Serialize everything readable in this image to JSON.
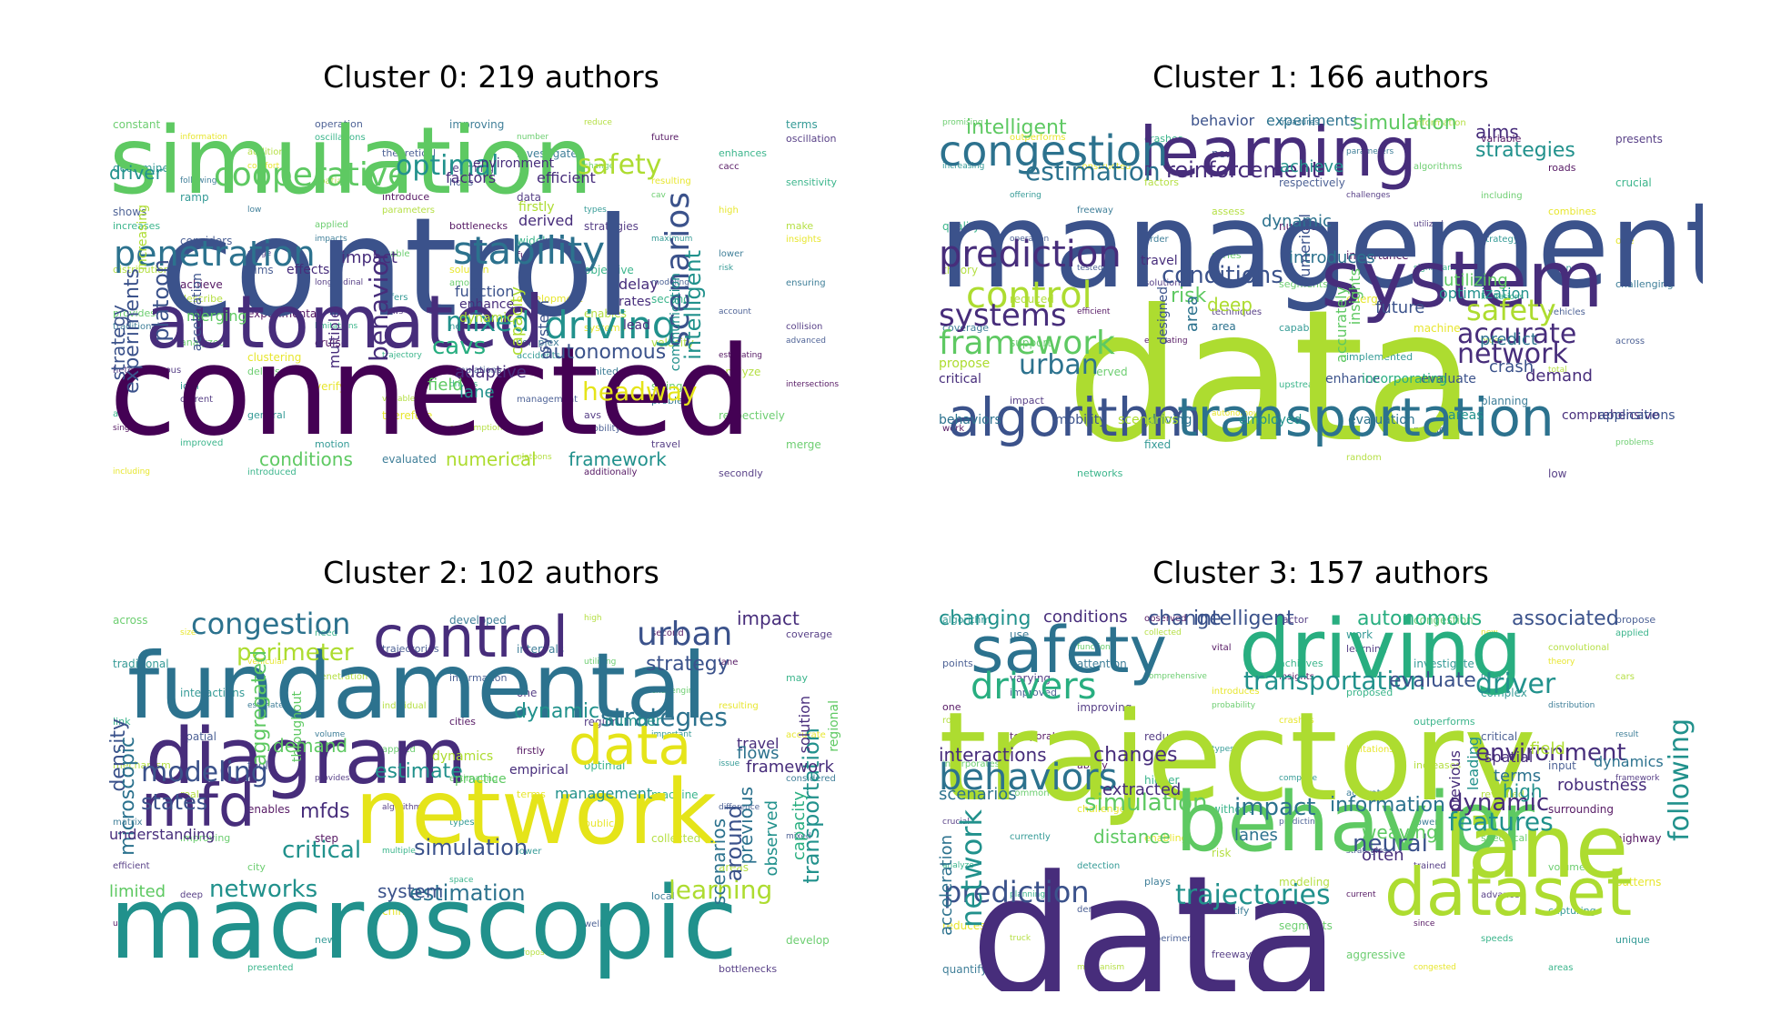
{
  "palette": {
    "dark_purple": "#440154",
    "indigo": "#472d7b",
    "navy": "#3b528b",
    "steel_blue": "#2c728e",
    "teal": "#21918c",
    "sea_green": "#28ae80",
    "green": "#5ec962",
    "lime": "#addc30",
    "yellow": "#e5e419"
  },
  "clusters": [
    {
      "title": "Cluster 0: 219 authors",
      "words": [
        "simulation",
        "control",
        "connected",
        "automated",
        "penetration",
        "stability",
        "driving",
        "cooperative",
        "safety",
        "optimal",
        "scenarios",
        "mixed",
        "cavs",
        "behavior",
        "experiments",
        "platoon",
        "autonomous",
        "strategy",
        "intelligent",
        "adaptive",
        "headway",
        "conditions",
        "framework",
        "numerical",
        "lane",
        "capacity",
        "field",
        "driver",
        "environment",
        "factors",
        "efficient",
        "derived",
        "firstly",
        "delay",
        "rates",
        "lead",
        "merging",
        "multiple",
        "impact",
        "effects",
        "function",
        "enhance",
        "dynamic",
        "system",
        "communication",
        "increasing",
        "acceleration",
        "constant",
        "reduce",
        "oscillations",
        "oscillation",
        "investigate",
        "comfort",
        "cacc",
        "hdvs",
        "ramp",
        "cav",
        "parameters",
        "increases",
        "strategies",
        "impacts",
        "insights",
        "fuel",
        "aims",
        "risk",
        "among",
        "describe",
        "second",
        "flows",
        "traditional",
        "systems",
        "cruise",
        "advanced",
        "accidents",
        "delays",
        "analyze",
        "drivers",
        "current",
        "problem",
        "therefore",
        "single",
        "mobility",
        "motion",
        "merge",
        "platoons",
        "introduced",
        "secondly",
        "improving",
        "information",
        "future",
        "theoretical",
        "determine",
        "change",
        "spatial",
        "sensitivity",
        "data",
        "low",
        "high",
        "bottlenecks",
        "considers",
        "maximum",
        "stable",
        "distribution",
        "objective",
        "longitudinal",
        "ensuring",
        "development",
        "experimental",
        "account",
        "network",
        "analyzed",
        "velocity",
        "trajectory",
        "heterogeneous",
        "limited",
        "verify",
        "intersections",
        "management",
        "general",
        "respectively",
        "consumption",
        "improved",
        "travel",
        "evaluated",
        "including",
        "additionally",
        "operation",
        "terms",
        "number",
        "addition",
        "enhances",
        "learning",
        "following",
        "resulting",
        "introduce",
        "shows",
        "types",
        "applied",
        "make",
        "widely",
        "range",
        "lower",
        "solution",
        "achieve",
        "modeling",
        "offers",
        "provides",
        "enables",
        "limitations",
        "collision",
        "complex",
        "clustering",
        "estimating",
        "simulations",
        "idm",
        "string",
        "variable",
        "av",
        "avs"
      ]
    },
    {
      "title": "Cluster 1: 166 authors",
      "words": [
        "data",
        "management",
        "learning",
        "system",
        "congestion",
        "algorithm",
        "transportation",
        "prediction",
        "control",
        "systems",
        "framework",
        "network",
        "urban",
        "safety",
        "accurate",
        "estimation",
        "reinforcement",
        "conditions",
        "intelligent",
        "behavior",
        "experiments",
        "simulation",
        "aims",
        "strategies",
        "achieve",
        "introduces",
        "dynamic",
        "risk",
        "deep",
        "travel",
        "future",
        "crash",
        "demand",
        "predict",
        "numerical",
        "area",
        "designed",
        "accurately",
        "insights",
        "optimization",
        "utilizing",
        "area",
        "evaluate",
        "enhance",
        "incorporating",
        "driving",
        "employed",
        "evaluation",
        "areas",
        "comprehensive",
        "applications",
        "behaviors",
        "mobility",
        "scenarios",
        "critical",
        "propose",
        "promising",
        "information",
        "crashes",
        "presents",
        "parameters",
        "constructed",
        "roads",
        "respectively",
        "offering",
        "including",
        "assess",
        "quality",
        "utilized",
        "order",
        "one",
        "importance",
        "tested",
        "often",
        "segments",
        "reduced",
        "limitations",
        "techniques",
        "coverage",
        "machine",
        "evaluating",
        "across",
        "implemented",
        "observed",
        "total",
        "upstream",
        "impact",
        "planning",
        "autonomous",
        "work",
        "problem",
        "fixed",
        "problems",
        "random",
        "networks",
        "low",
        "measures",
        "outperforms",
        "variable",
        "new",
        "increasing",
        "algorithms",
        "factors",
        "crucial",
        "challenges",
        "freeway",
        "combines",
        "number",
        "operation",
        "strategy",
        "series",
        "theory",
        "significant",
        "solutions",
        "challenging",
        "energy",
        "efficient",
        "vehicles",
        "capable",
        "support",
        "order"
      ]
    },
    {
      "title": "Cluster 2: 102 authors",
      "words": [
        "macroscopic",
        "fundamental",
        "network",
        "diagram",
        "data",
        "control",
        "mfd",
        "congestion",
        "urban",
        "perimeter",
        "strategies",
        "modeling",
        "estimate",
        "dynamic",
        "dynamics",
        "density",
        "microscopic",
        "states",
        "demand",
        "mfds",
        "critical",
        "simulation",
        "networks",
        "estimation",
        "system",
        "limited",
        "understanding",
        "learning",
        "transportation",
        "observed",
        "capacity",
        "regional",
        "solution",
        "previous",
        "scenarios",
        "around",
        "strategy",
        "impact",
        "framework",
        "travel",
        "flows",
        "management",
        "aggregated",
        "throughout",
        "empirical",
        "practice",
        "number",
        "across",
        "high",
        "need",
        "coverage",
        "intervals",
        "vehicular",
        "lane",
        "information",
        "interactions",
        "challenging",
        "individual",
        "link",
        "region",
        "volume",
        "accurate",
        "firstly",
        "tool",
        "issue",
        "estimating",
        "real",
        "machine",
        "algorithm",
        "matrix",
        "public",
        "step",
        "mixed",
        "lower",
        "city",
        "areas",
        "space",
        "deep",
        "local",
        "china",
        "use",
        "well",
        "new",
        "develop",
        "propose",
        "presented",
        "bottlenecks",
        "developed",
        "size",
        "second",
        "trajectories",
        "traditional",
        "utilizing",
        "penetration",
        "may",
        "one",
        "estimated",
        "resulting",
        "cities",
        "spatial",
        "important",
        "applied",
        "mechanism",
        "optimal",
        "provides",
        "considered",
        "terms",
        "enables",
        "difference",
        "types",
        "improving",
        "collected",
        "multiple",
        "efficient"
      ]
    },
    {
      "title": "Cluster 3: 157 authors",
      "words": [
        "data",
        "trajectory",
        "behavior",
        "driving",
        "lane",
        "dataset",
        "safety",
        "drivers",
        "behaviors",
        "transportation",
        "changing",
        "prediction",
        "trajectories",
        "features",
        "driver",
        "environment",
        "dynamic",
        "following",
        "network",
        "simulation",
        "impact",
        "information",
        "neural",
        "weaving",
        "intelligent",
        "autonomous",
        "associated",
        "conditions",
        "change",
        "evaluate",
        "changes",
        "interactions",
        "scenarios",
        "distance",
        "extracted",
        "lanes",
        "often",
        "high",
        "robustness",
        "terms",
        "field",
        "spatial",
        "dynamics",
        "leading",
        "previous",
        "acceleration",
        "algorithm",
        "congestion",
        "collected",
        "applied",
        "learning",
        "attention",
        "theory",
        "insights",
        "improved",
        "complex",
        "probability",
        "role",
        "outperforms",
        "reduce",
        "result",
        "limitations",
        "ability",
        "input",
        "complete",
        "common",
        "revealed",
        "without",
        "crucial",
        "lower",
        "enabling",
        "highway",
        "strategies",
        "detection",
        "volume",
        "modeling",
        "planning",
        "advanced",
        "identify",
        "reduces",
        "since",
        "experiments",
        "unique",
        "aggressive",
        "mechanism",
        "areas",
        "factor",
        "use",
        "new",
        "vital",
        "points",
        "investigate",
        "comprehensive",
        "cars",
        "proposed",
        "improving",
        "distribution",
        "crashes",
        "temporal",
        "critical",
        "types",
        "incorporates",
        "increases",
        "higher",
        "framework",
        "accurately",
        "challenges",
        "surrounding",
        "predicting",
        "currently",
        "specifically",
        "risk",
        "analyze",
        "trained",
        "plays",
        "patterns",
        "current",
        "demonstrates",
        "capturing",
        "segments",
        "truck",
        "speeds",
        "freeway",
        "quantify",
        "congested",
        "observed",
        "propose",
        "work",
        "function",
        "convolutional",
        "achieves",
        "varying",
        "need",
        "introduces",
        "one"
      ]
    }
  ]
}
